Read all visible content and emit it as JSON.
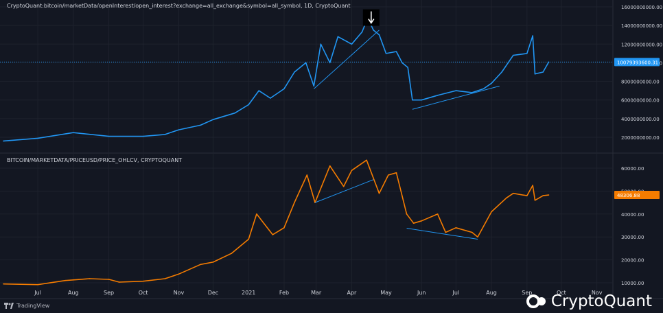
{
  "colors": {
    "background": "#131722",
    "grid": "#1e222d",
    "open_interest_line": "#2196f3",
    "price_line": "#f57c00",
    "trendline": "#2196f3",
    "axis_text": "#d1d4dc",
    "oi_tag_bg": "#2196f3",
    "price_tag_bg": "#f57c00"
  },
  "icons": {
    "down_arrow_marker": "arrow-down-icon",
    "watermark_logo": "cryptoquant-logo-icon",
    "tradingview_logo": "tradingview-logo-icon"
  },
  "watermark": {
    "brand": "CryptoQuant"
  },
  "footer": {
    "tradingview_label": "TradingView"
  },
  "chart_data": [
    {
      "type": "line",
      "title": "CryptoQuant:bitcoin/marketData/openInterest/open_interest?exchange=all_exchange&symbol=all_symbol, 1D, CryptoQuant",
      "ylim": [
        0,
        16000000000
      ],
      "y_ticks": [
        2000000000,
        4000000000,
        6000000000,
        8000000000,
        10000000000,
        12000000000,
        14000000000,
        16000000000
      ],
      "y_tick_labels": [
        "2000000000.00",
        "4000000000.00",
        "6000000000.00",
        "8000000000.00",
        "10000000000.00",
        "12000000000.00",
        "14000000000.00",
        "16000000000.00"
      ],
      "last_value": 10079393600.31,
      "last_value_label": "10079393600.31",
      "grid": true,
      "x": [
        "2020-06-01",
        "2020-07-01",
        "2020-08-01",
        "2020-09-01",
        "2020-10-01",
        "2020-10-20",
        "2020-11-01",
        "2020-11-20",
        "2020-12-01",
        "2020-12-20",
        "2021-01-01",
        "2021-01-10",
        "2021-01-20",
        "2021-02-01",
        "2021-02-10",
        "2021-02-20",
        "2021-02-27",
        "2021-03-05",
        "2021-03-13",
        "2021-03-20",
        "2021-04-01",
        "2021-04-10",
        "2021-04-15",
        "2021-04-20",
        "2021-04-25",
        "2021-05-01",
        "2021-05-10",
        "2021-05-15",
        "2021-05-20",
        "2021-05-24",
        "2021-06-01",
        "2021-06-15",
        "2021-07-01",
        "2021-07-15",
        "2021-07-25",
        "2021-08-01",
        "2021-08-10",
        "2021-08-20",
        "2021-09-01",
        "2021-09-06",
        "2021-09-08",
        "2021-09-15",
        "2021-09-20"
      ],
      "values": [
        1600000000,
        1900000000,
        2500000000,
        2100000000,
        2100000000,
        2300000000,
        2800000000,
        3300000000,
        3900000000,
        4600000000,
        5500000000,
        7000000000,
        6200000000,
        7200000000,
        9000000000,
        10000000000,
        7500000000,
        12000000000,
        10000000000,
        12800000000,
        12000000000,
        13300000000,
        14800000000,
        13500000000,
        13000000000,
        11000000000,
        11200000000,
        10000000000,
        9500000000,
        6000000000,
        6000000000,
        6500000000,
        7000000000,
        6800000000,
        7200000000,
        7800000000,
        9000000000,
        10800000000,
        11000000000,
        12900000000,
        8800000000,
        9000000000,
        10079393600
      ],
      "trendlines": [
        {
          "x": [
            "2021-02-27",
            "2021-04-25"
          ],
          "y": [
            7200000000,
            13500000000
          ]
        },
        {
          "x": [
            "2021-05-24",
            "2021-08-08"
          ],
          "y": [
            5000000000,
            7500000000
          ]
        }
      ],
      "annotations": [
        {
          "type": "arrow-down",
          "x": "2021-04-18",
          "y": 15000000000
        }
      ]
    },
    {
      "type": "line",
      "title": "BITCOIN/MARKETDATA/PRICEUSD/PRICE_OHLCV, CRYPTOQUANT",
      "ylim": [
        10000,
        65000
      ],
      "y_ticks": [
        10000,
        20000,
        30000,
        40000,
        50000,
        60000
      ],
      "y_tick_labels": [
        "10000.00",
        "20000.00",
        "30000.00",
        "40000.00",
        "50000.00",
        "60000.00"
      ],
      "last_value": 48306.88,
      "last_value_label": "48306.88",
      "grid": true,
      "x": [
        "2020-06-01",
        "2020-07-01",
        "2020-07-25",
        "2020-08-15",
        "2020-09-01",
        "2020-09-10",
        "2020-10-01",
        "2020-10-20",
        "2020-11-01",
        "2020-11-20",
        "2020-12-01",
        "2020-12-17",
        "2021-01-01",
        "2021-01-08",
        "2021-01-22",
        "2021-02-01",
        "2021-02-10",
        "2021-02-21",
        "2021-02-28",
        "2021-03-13",
        "2021-03-25",
        "2021-04-01",
        "2021-04-14",
        "2021-04-25",
        "2021-05-03",
        "2021-05-10",
        "2021-05-19",
        "2021-05-25",
        "2021-06-01",
        "2021-06-15",
        "2021-06-22",
        "2021-07-01",
        "2021-07-15",
        "2021-07-20",
        "2021-08-01",
        "2021-08-14",
        "2021-08-20",
        "2021-09-01",
        "2021-09-06",
        "2021-09-08",
        "2021-09-15",
        "2021-09-20"
      ],
      "values": [
        9500,
        9200,
        11000,
        11800,
        11500,
        10300,
        10700,
        11800,
        13800,
        18000,
        19000,
        22800,
        29000,
        40000,
        31000,
        34000,
        45000,
        57000,
        45000,
        61000,
        52000,
        59000,
        63500,
        49000,
        57000,
        58000,
        40000,
        36000,
        37000,
        40000,
        32000,
        34000,
        32000,
        30000,
        41000,
        47000,
        49000,
        48000,
        52500,
        46000,
        48000,
        48306.88
      ],
      "trendlines": [
        {
          "x": [
            "2021-02-28",
            "2021-04-20"
          ],
          "y": [
            45000,
            55000
          ]
        },
        {
          "x": [
            "2021-05-19",
            "2021-07-20"
          ],
          "y": [
            33800,
            29000
          ]
        }
      ]
    }
  ],
  "x_axis": {
    "start": "2020-06-01",
    "end": "2021-11-15",
    "labels": [
      {
        "date": "2020-07-01",
        "text": "Jul"
      },
      {
        "date": "2020-08-01",
        "text": "Aug"
      },
      {
        "date": "2020-09-01",
        "text": "Sep"
      },
      {
        "date": "2020-10-01",
        "text": "Oct"
      },
      {
        "date": "2020-11-01",
        "text": "Nov"
      },
      {
        "date": "2020-12-01",
        "text": "Dec"
      },
      {
        "date": "2021-01-01",
        "text": "2021"
      },
      {
        "date": "2021-02-01",
        "text": "Feb"
      },
      {
        "date": "2021-03-01",
        "text": "Mar"
      },
      {
        "date": "2021-04-01",
        "text": "Apr"
      },
      {
        "date": "2021-05-01",
        "text": "May"
      },
      {
        "date": "2021-06-01",
        "text": "Jun"
      },
      {
        "date": "2021-07-01",
        "text": "Jul"
      },
      {
        "date": "2021-08-01",
        "text": "Aug"
      },
      {
        "date": "2021-09-01",
        "text": "Sep"
      },
      {
        "date": "2021-10-01",
        "text": "Oct"
      },
      {
        "date": "2021-11-01",
        "text": "Nov"
      }
    ]
  }
}
